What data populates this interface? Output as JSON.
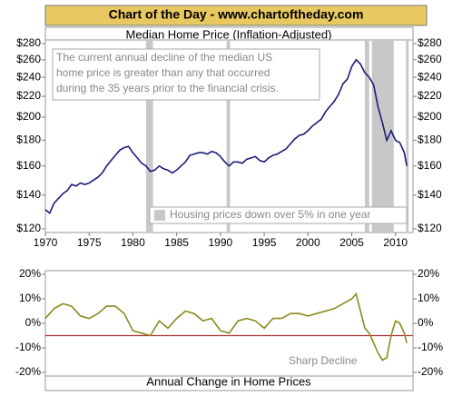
{
  "chart_data": [
    {
      "type": "line",
      "header": "Chart of the Day - www.chartoftheday.com",
      "title": "Median Home Price (Inflation-Adjusted)",
      "annotation": [
        "The current annual decline of the median US",
        "home price is greater than any that occurred",
        "during the 35 years prior to the financial crisis."
      ],
      "legend": "Housing prices down over 5% in one year",
      "log_scale": true,
      "color": "#1c1c7a",
      "shade_color": "#c8c8c8",
      "shaded_regions": [
        [
          1981.5,
          1982.3
        ],
        [
          1990.7,
          1991.1
        ],
        [
          2006.5,
          2007.0
        ],
        [
          2007.3,
          2009.8
        ],
        [
          2011.2,
          2011.5
        ]
      ],
      "x": [
        1970,
        1970.5,
        1971,
        1971.5,
        1972,
        1972.5,
        1973,
        1973.5,
        1974,
        1974.5,
        1975,
        1975.5,
        1976,
        1976.5,
        1977,
        1977.5,
        1978,
        1978.5,
        1979,
        1979.5,
        1980,
        1980.5,
        1981,
        1981.5,
        1982,
        1982.5,
        1983,
        1983.5,
        1984,
        1984.5,
        1985,
        1985.5,
        1986,
        1986.5,
        1987,
        1987.5,
        1988,
        1988.5,
        1989,
        1989.5,
        1990,
        1990.5,
        1991,
        1991.5,
        1992,
        1992.5,
        1993,
        1993.5,
        1994,
        1994.5,
        1995,
        1995.5,
        1996,
        1996.5,
        1997,
        1997.5,
        1998,
        1998.5,
        1999,
        1999.5,
        2000,
        2000.5,
        2001,
        2001.5,
        2002,
        2002.5,
        2003,
        2003.5,
        2004,
        2004.5,
        2005,
        2005.5,
        2006,
        2006.5,
        2007,
        2007.5,
        2008,
        2008.5,
        2009,
        2009.5,
        2010,
        2010.5,
        2011,
        2011.3
      ],
      "values": [
        131,
        129,
        135,
        138,
        141,
        143,
        147,
        146,
        148,
        147,
        148,
        150,
        152,
        155,
        160,
        164,
        168,
        172,
        174,
        175,
        170,
        166,
        162,
        160,
        156,
        157,
        160,
        158,
        157,
        155,
        157,
        160,
        163,
        168,
        169,
        170,
        170,
        169,
        171,
        170,
        167,
        163,
        160,
        163,
        163,
        162,
        165,
        166,
        167,
        164,
        163,
        166,
        168,
        169,
        171,
        173,
        177,
        181,
        184,
        185,
        188,
        192,
        195,
        198,
        205,
        210,
        215,
        222,
        233,
        238,
        252,
        260,
        255,
        245,
        240,
        232,
        210,
        195,
        180,
        188,
        180,
        178,
        170,
        160
      ],
      "xlim": [
        1970,
        2012
      ],
      "xticks": [
        1970,
        1975,
        1980,
        1985,
        1990,
        1995,
        2000,
        2005,
        2010
      ],
      "ylim": [
        120,
        280
      ],
      "yticks": [
        {
          "value": 120,
          "label": "$120"
        },
        {
          "value": 140,
          "label": "$140"
        },
        {
          "value": 160,
          "label": "$160"
        },
        {
          "value": 180,
          "label": "$180"
        },
        {
          "value": 200,
          "label": "$200"
        },
        {
          "value": 220,
          "label": "$220"
        },
        {
          "value": 240,
          "label": "$240"
        },
        {
          "value": 260,
          "label": "$260"
        },
        {
          "value": 280,
          "label": "$280"
        }
      ]
    },
    {
      "type": "line",
      "title": "Annual Change in Home Prices",
      "annotation": "Sharp Decline",
      "color": "#8a8a1e",
      "ref_line": {
        "value": -5,
        "color": "#b03030"
      },
      "x": [
        1970,
        1971,
        1972,
        1973,
        1974,
        1975,
        1976,
        1977,
        1978,
        1979,
        1980,
        1981,
        1982,
        1983,
        1984,
        1985,
        1986,
        1987,
        1988,
        1989,
        1990,
        1991,
        1992,
        1993,
        1994,
        1995,
        1996,
        1997,
        1998,
        1999,
        2000,
        2001,
        2002,
        2003,
        2004,
        2005,
        2005.5,
        2006,
        2006.5,
        2007,
        2007.5,
        2008,
        2008.5,
        2009,
        2009.5,
        2010,
        2010.5,
        2011,
        2011.3
      ],
      "values": [
        2,
        6,
        8,
        7,
        3,
        2,
        4,
        7,
        7,
        4,
        -3,
        -4,
        -5,
        1,
        -2,
        2,
        5,
        4,
        1,
        2,
        -3,
        -4,
        1,
        2,
        1,
        -2,
        2,
        2,
        4,
        4,
        3,
        4,
        5,
        6,
        8,
        10,
        12,
        5,
        -2,
        -4,
        -8,
        -12,
        -15,
        -14,
        -5,
        1,
        0,
        -4,
        -8
      ],
      "xlim": [
        1970,
        2012
      ],
      "ylim": [
        -20,
        20
      ],
      "yticks": [
        {
          "value": -20,
          "label": "-20%"
        },
        {
          "value": -10,
          "label": "-10%"
        },
        {
          "value": 0,
          "label": "0%"
        },
        {
          "value": 10,
          "label": "10%"
        },
        {
          "value": 20,
          "label": "20%"
        }
      ]
    }
  ]
}
